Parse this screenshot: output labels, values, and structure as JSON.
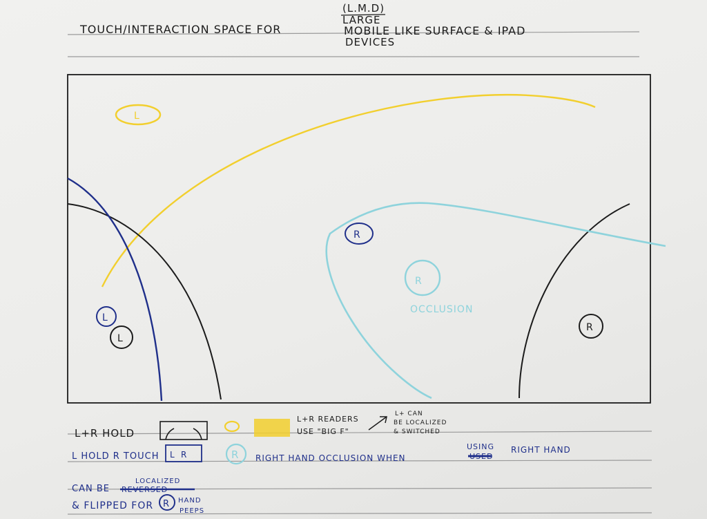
{
  "title": {
    "main": "TOUCH/INTERACTION SPACE FOR",
    "lmd": "(L.M.D)",
    "large": "LARGE",
    "devices_line": "MOBILE LIKE SURFACE & IPAD",
    "devices": "DEVICES"
  },
  "canvas": {
    "eye_letter": "L",
    "marker_r_top": "R",
    "marker_r_cyan": "R",
    "occlusion_label": "OCCLUSION",
    "marker_l_blue": "L",
    "marker_l_black": "L",
    "marker_r_black": "R"
  },
  "notes": {
    "row1_label": "L+R HOLD",
    "row1_box_l": "",
    "row1_box_r": "",
    "ltr_readers": "L+R READERS",
    "use_big_f": "USE \"BIG F\"",
    "localize_1": "L+ CAN",
    "localize_2": "BE LOCALIZED",
    "localize_3": "& SWITCHED",
    "row2_label": "L HOLD R TOUCH",
    "row2_box_l": "L",
    "row2_box_r": "R",
    "row2_marker": "R",
    "row2_text": "RIGHT HAND OCCLUSION WHEN",
    "row2_struck": "USED",
    "row2_using": "USING",
    "row2_end": "RIGHT HAND",
    "row3_can_be": "CAN BE",
    "row3_struck": "REVERSED",
    "row3_localized": "LOCALIZED",
    "row4_text": "& FLIPPED FOR",
    "row4_marker": "R",
    "row4_hand": "HAND",
    "row4_peeps": "PEEPS"
  },
  "colors": {
    "ink_black": "#1b1b1b",
    "ink_blue": "#1f2f8a",
    "marker_yellow": "#f2cf2e",
    "marker_cyan": "#8ed3dc",
    "paper": "#efefed"
  }
}
